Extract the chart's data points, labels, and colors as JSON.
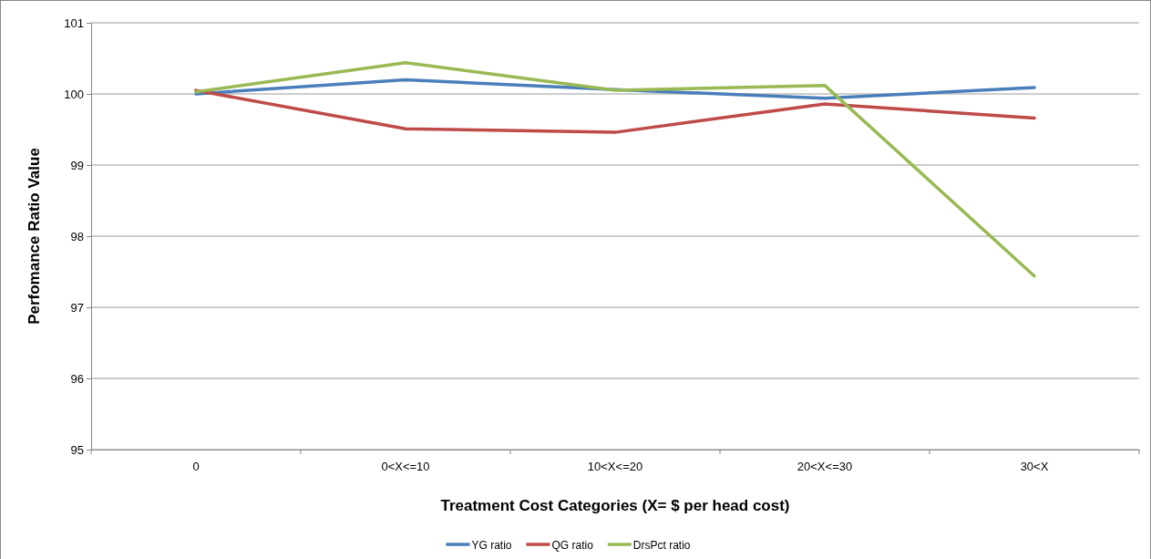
{
  "chart_data": {
    "type": "line",
    "xlabel": "Treatment Cost Categories (X= $ per head cost)",
    "ylabel": "Perfomance Ratio Value",
    "categories": [
      "0",
      "0<X<=10",
      "10<X<=20",
      "20<X<=30",
      "30<X"
    ],
    "series": [
      {
        "name": "YG ratio",
        "color": "#4a7ebb",
        "values": [
          100.0,
          100.2,
          100.06,
          99.94,
          100.09
        ]
      },
      {
        "name": "QG ratio",
        "color": "#be4b48",
        "values": [
          100.05,
          99.51,
          99.46,
          99.86,
          99.66
        ]
      },
      {
        "name": "DrsPct ratio",
        "color": "#98b954",
        "values": [
          100.03,
          100.44,
          100.05,
          100.12,
          97.44
        ]
      }
    ],
    "ylim": [
      95,
      101
    ],
    "yticks": [
      95,
      96,
      97,
      98,
      99,
      100,
      101
    ],
    "grid": "y",
    "legend": "bottom",
    "marker": "none",
    "line_style": "solid"
  }
}
